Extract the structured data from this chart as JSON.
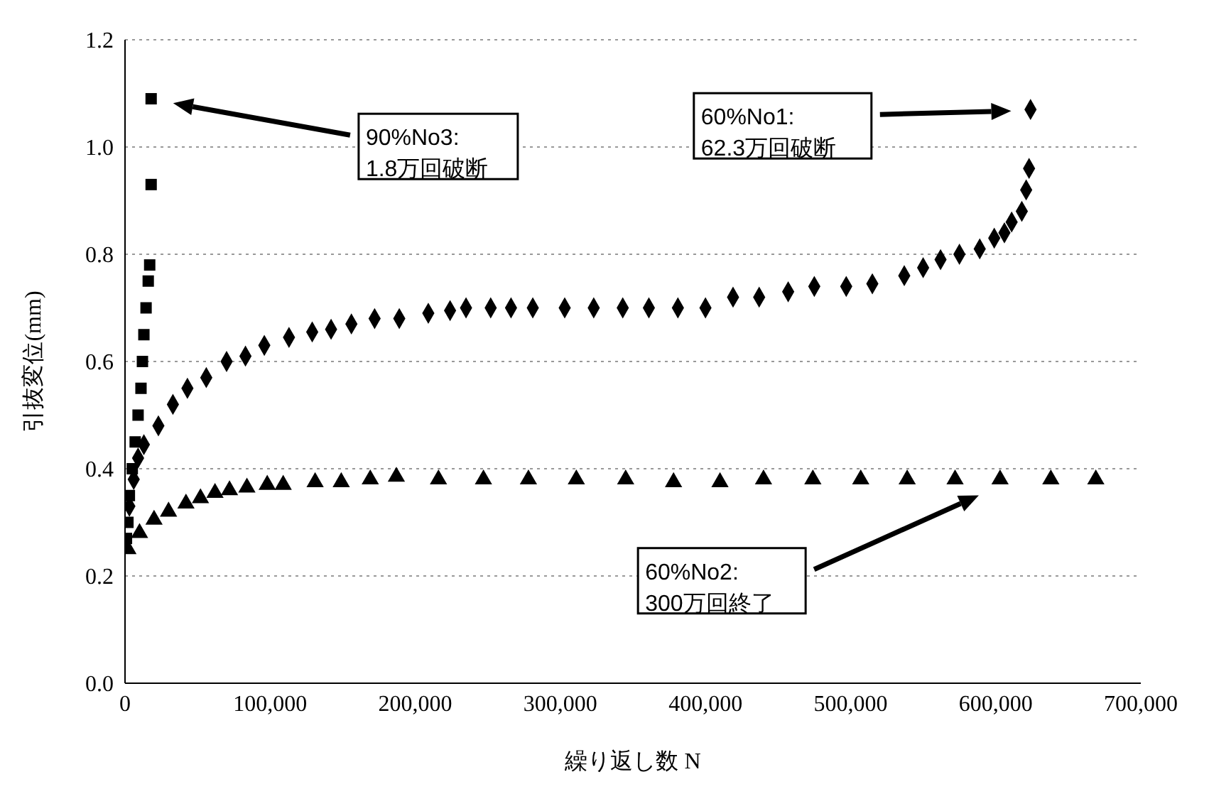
{
  "chart_data": {
    "type": "scatter",
    "xlabel": "繰り返し数 N",
    "ylabel": "引抜変位(mm)",
    "xlim": [
      0,
      700000
    ],
    "ylim": [
      0,
      1.2
    ],
    "xticks": [
      0,
      {
        "value": 100000,
        "label": "100,000"
      },
      {
        "value": 200000,
        "label": "200,000"
      },
      {
        "value": 300000,
        "label": "300,000"
      },
      {
        "value": 400000,
        "label": "400,000"
      },
      {
        "value": 500000,
        "label": "500,000"
      },
      {
        "value": 600000,
        "label": "600,000"
      },
      {
        "value": 700000,
        "label": "700,000"
      }
    ],
    "yticks": [
      {
        "value": 0,
        "label": "0.0"
      },
      {
        "value": 0.2,
        "label": "0.2"
      },
      {
        "value": 0.4,
        "label": "0.4"
      },
      {
        "value": 0.6,
        "label": "0.6"
      },
      {
        "value": 0.8,
        "label": "0.8"
      },
      {
        "value": 1,
        "label": "1.0"
      },
      {
        "value": 1.2,
        "label": "1.2"
      }
    ],
    "grid": "y",
    "legend": false,
    "series": [
      {
        "color": "#000000",
        "marker": "diamond",
        "x": [
          3000,
          6000,
          9000,
          13000,
          23000,
          33000,
          43000,
          56000,
          70000,
          83000,
          96000,
          113000,
          129000,
          142000,
          156000,
          172000,
          189000,
          209000,
          224000,
          235000,
          252000,
          266000,
          281000,
          303000,
          323000,
          343000,
          361000,
          381000,
          400000,
          419000,
          437000,
          457000,
          475000,
          497000,
          515000,
          537000,
          550000,
          562000,
          575000,
          589000,
          599000,
          606000,
          611000,
          618000,
          621000,
          623000,
          624000
        ],
        "values": [
          0.33,
          0.38,
          0.42,
          0.445,
          0.48,
          0.52,
          0.55,
          0.57,
          0.6,
          0.61,
          0.63,
          0.645,
          0.655,
          0.66,
          0.67,
          0.68,
          0.68,
          0.69,
          0.695,
          0.7,
          0.7,
          0.7,
          0.7,
          0.7,
          0.7,
          0.7,
          0.7,
          0.7,
          0.7,
          0.72,
          0.72,
          0.73,
          0.74,
          0.74,
          0.745,
          0.76,
          0.775,
          0.79,
          0.8,
          0.81,
          0.83,
          0.84,
          0.86,
          0.88,
          0.92,
          0.96,
          1.07
        ]
      },
      {
        "color": "#000000",
        "marker": "square",
        "x": [
          1000,
          2000,
          3000,
          5000,
          7000,
          9000,
          11000,
          12000,
          13000,
          14500,
          16000,
          17000,
          18000,
          18000
        ],
        "values": [
          0.27,
          0.3,
          0.35,
          0.4,
          0.45,
          0.5,
          0.55,
          0.6,
          0.65,
          0.7,
          0.75,
          0.78,
          0.93,
          1.09
        ]
      },
      {
        "color": "#000000",
        "marker": "triangle",
        "x": [
          2000,
          10000,
          20000,
          30000,
          42000,
          52000,
          62000,
          72000,
          84000,
          98000,
          109000,
          131000,
          149000,
          169000,
          187000,
          216000,
          247000,
          278000,
          311000,
          345000,
          378000,
          410000,
          440000,
          474000,
          507000,
          539000,
          572000,
          603000,
          638000,
          669000
        ],
        "values": [
          0.25,
          0.28,
          0.305,
          0.32,
          0.335,
          0.345,
          0.355,
          0.36,
          0.365,
          0.37,
          0.37,
          0.375,
          0.375,
          0.38,
          0.385,
          0.38,
          0.38,
          0.38,
          0.38,
          0.38,
          0.375,
          0.375,
          0.38,
          0.38,
          0.38,
          0.38,
          0.38,
          0.38,
          0.38,
          0.38
        ]
      }
    ],
    "annotations": [
      "90%No3:\n1.8万回破断",
      "60%No1:\n62.3万回破断",
      "60%No2:\n300万回終了"
    ]
  }
}
